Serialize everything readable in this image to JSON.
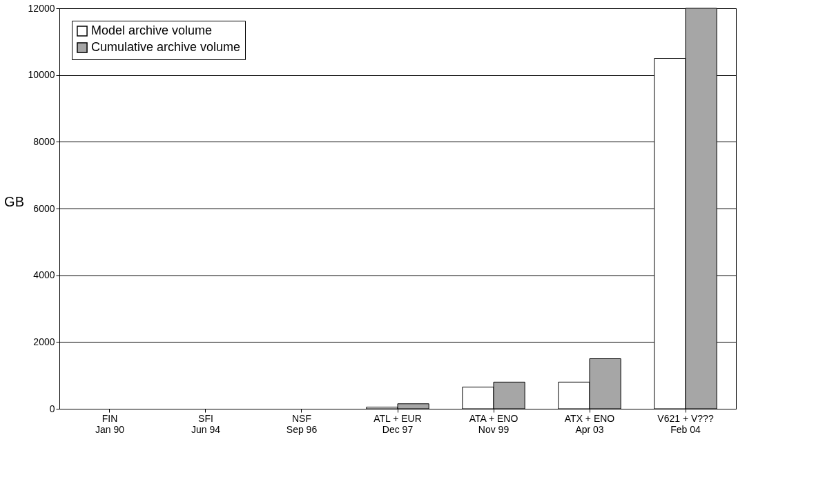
{
  "chart_data": {
    "type": "bar",
    "ylabel": "GB",
    "categories": [
      "FIN\nJan 90",
      "SFI\nJun 94",
      "NSF\nSep 96",
      "ATL + EUR\nDec 97",
      "ATA + ENO\nNov 99",
      "ATX + ENO\nApr 03",
      "V621 + V???\nFeb 04"
    ],
    "series": [
      {
        "name": "Model archive volume",
        "color": "#ffffff",
        "values": [
          0,
          0,
          0,
          50,
          650,
          800,
          10500
        ]
      },
      {
        "name": "Cumulative archive volume",
        "color": "#a6a6a6",
        "values": [
          0,
          0,
          0,
          150,
          800,
          1500,
          12000
        ]
      }
    ],
    "ylim": [
      0,
      12000
    ],
    "yticks": [
      0,
      2000,
      4000,
      6000,
      8000,
      10000,
      12000
    ],
    "grid": "y",
    "legend": "top left"
  }
}
